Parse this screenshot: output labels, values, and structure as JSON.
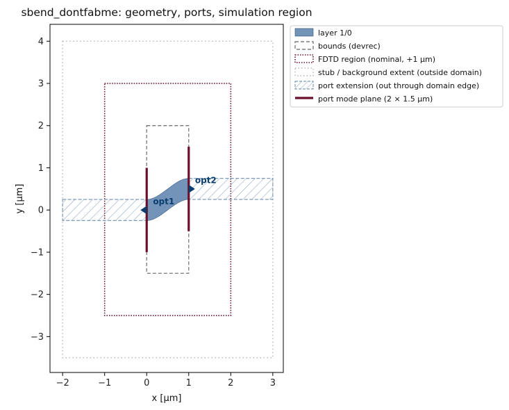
{
  "chart_data": {
    "type": "layout",
    "title": "sbend_dontfabme: geometry, ports, simulation region",
    "xlabel": "x [µm]",
    "ylabel": "y [µm]",
    "xlim": [
      -2.3,
      3.25
    ],
    "ylim": [
      -3.85,
      4.4
    ],
    "xticks": [
      -2,
      -1,
      0,
      1,
      2,
      3
    ],
    "yticks": [
      -3,
      -2,
      -1,
      0,
      1,
      2,
      3,
      4
    ],
    "xtick_labels": [
      "−2",
      "−1",
      "0",
      "1",
      "2",
      "3"
    ],
    "ytick_labels": [
      "−3",
      "−2",
      "−1",
      "0",
      "1",
      "2",
      "3",
      "4"
    ],
    "grid": false,
    "legend_position": "outside-top-right",
    "layer": {
      "label": "layer 1/0",
      "color": "#7394b8",
      "wg_half_width": 0.25,
      "bend_start": [
        0,
        0
      ],
      "bend_end": [
        1,
        0.5
      ]
    },
    "bounds": {
      "label": "bounds (devrec)",
      "x": [
        0,
        1
      ],
      "y": [
        -1.5,
        2
      ],
      "color": "#7f7f7f"
    },
    "fdtd_region": {
      "label": "FDTD region (nominal, +1 µm)",
      "x": [
        -1,
        2
      ],
      "y": [
        -2.5,
        3
      ],
      "color": "#6b0f2b"
    },
    "stub_extent": {
      "label": "stub / background extent (outside domain)",
      "x": [
        -2,
        3
      ],
      "y": [
        -3.5,
        4
      ],
      "color": "#b5b5b5"
    },
    "port_extensions": {
      "label": "port extension (out through domain edge)",
      "color": "#7f9ab5",
      "segments": [
        {
          "x": [
            -2,
            0
          ],
          "y": [
            -0.25,
            0.25
          ]
        },
        {
          "x": [
            1,
            3
          ],
          "y": [
            0.25,
            0.75
          ]
        }
      ]
    },
    "port_planes": {
      "label": "port mode plane (2 × 1.5 µm)",
      "color": "#6b0f2b",
      "planes": [
        {
          "x": 0,
          "y": [
            -1,
            1
          ]
        },
        {
          "x": 1,
          "y": [
            -0.5,
            1.5
          ]
        }
      ]
    },
    "ports": [
      {
        "name": "opt1",
        "x": 0,
        "y": 0,
        "direction": "west",
        "label_x": 0.15,
        "label_y": 0.2
      },
      {
        "name": "opt2",
        "x": 1,
        "y": 0.5,
        "direction": "east",
        "label_x": 1.15,
        "label_y": 0.7
      }
    ]
  }
}
